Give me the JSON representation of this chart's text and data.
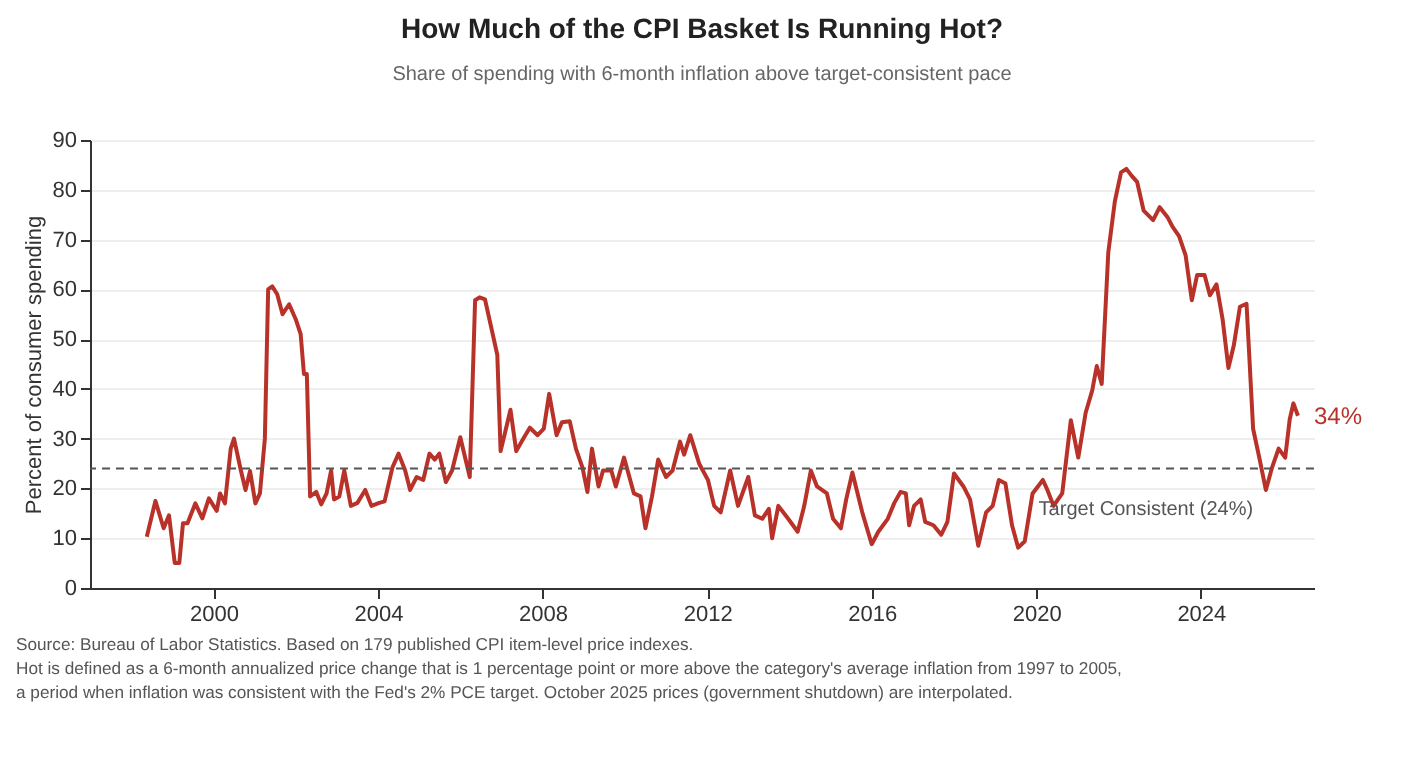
{
  "chart_data": {
    "type": "line",
    "title": "How Much of the CPI Basket Is Running Hot?",
    "subtitle": "Share of spending with 6-month inflation above target-consistent pace",
    "ylabel": "Percent of consumer spending",
    "xlim": [
      1997,
      2026.75
    ],
    "xticks": [
      2000,
      2004,
      2008,
      2012,
      2016,
      2020,
      2024
    ],
    "ylim": [
      0,
      90
    ],
    "yticks": [
      0,
      10,
      20,
      30,
      40,
      50,
      60,
      70,
      80,
      90
    ],
    "grid": "y",
    "series": [
      {
        "color": "#b8322a",
        "x": [
          1998.38,
          1998.59,
          1998.79,
          1998.92,
          1999.06,
          1999.17,
          1999.26,
          1999.37,
          1999.56,
          1999.73,
          1999.89,
          2000.08,
          2000.16,
          2000.28,
          2000.42,
          2000.5,
          2000.67,
          2000.78,
          2000.89,
          2001.02,
          2001.13,
          2001.25,
          2001.33,
          2001.43,
          2001.55,
          2001.68,
          2001.84,
          2002.0,
          2002.12,
          2002.2,
          2002.27,
          2002.35,
          2002.5,
          2002.62,
          2002.75,
          2002.86,
          2002.93,
          2003.06,
          2003.18,
          2003.34,
          2003.5,
          2003.69,
          2003.84,
          2004.03,
          2004.16,
          2004.35,
          2004.5,
          2004.66,
          2004.78,
          2004.94,
          2005.1,
          2005.25,
          2005.38,
          2005.49,
          2005.65,
          2005.8,
          2006.0,
          2006.23,
          2006.36,
          2006.47,
          2006.6,
          2006.78,
          2006.9,
          2006.98,
          2007.22,
          2007.36,
          2007.53,
          2007.69,
          2007.88,
          2008.03,
          2008.16,
          2008.34,
          2008.47,
          2008.66,
          2008.81,
          2008.97,
          2009.09,
          2009.2,
          2009.36,
          2009.47,
          2009.67,
          2009.78,
          2009.98,
          2010.22,
          2010.38,
          2010.5,
          2010.66,
          2010.81,
          2011.0,
          2011.16,
          2011.34,
          2011.44,
          2011.59,
          2011.81,
          2012.02,
          2012.17,
          2012.33,
          2012.56,
          2012.75,
          2013.0,
          2013.16,
          2013.34,
          2013.5,
          2013.58,
          2013.73,
          2013.97,
          2014.2,
          2014.36,
          2014.52,
          2014.67,
          2014.91,
          2015.06,
          2015.25,
          2015.38,
          2015.53,
          2015.77,
          2016.0,
          2016.16,
          2016.39,
          2016.55,
          2016.7,
          2016.83,
          2016.91,
          2017.03,
          2017.19,
          2017.3,
          2017.5,
          2017.69,
          2017.84,
          2018.0,
          2018.23,
          2018.39,
          2018.59,
          2018.78,
          2018.94,
          2019.09,
          2019.25,
          2019.41,
          2019.56,
          2019.72,
          2019.91,
          2020.16,
          2020.27,
          2020.42,
          2020.63,
          2020.84,
          2021.02,
          2021.2,
          2021.36,
          2021.47,
          2021.59,
          2021.75,
          2021.91,
          2022.06,
          2022.19,
          2022.31,
          2022.45,
          2022.61,
          2022.84,
          2023.0,
          2023.19,
          2023.31,
          2023.47,
          2023.63,
          2023.78,
          2023.91,
          2024.09,
          2024.22,
          2024.38,
          2024.53,
          2024.67,
          2024.8,
          2024.95,
          2025.11,
          2025.27,
          2025.42,
          2025.58,
          2025.73,
          2025.89,
          2026.05,
          2026.16,
          2026.25,
          2026.36
        ],
        "values": [
          10.3,
          17.5,
          12,
          14.6,
          5,
          5,
          13,
          13,
          17,
          14,
          18,
          15.5,
          19,
          17,
          28,
          30,
          23.5,
          19.7,
          23.5,
          17,
          19,
          30,
          60,
          60.6,
          59,
          55,
          57,
          54,
          51,
          43,
          43,
          18.4,
          19.3,
          16.8,
          19,
          23.6,
          17.8,
          18.4,
          23.6,
          16.5,
          17.1,
          19.7,
          16.5,
          17.1,
          17.4,
          24.2,
          27,
          23.6,
          19.7,
          22.3,
          21.7,
          27,
          25.8,
          27,
          21.3,
          23.6,
          30.3,
          22.3,
          57.8,
          58.4,
          58,
          51.3,
          46.8,
          27.5,
          35.8,
          27.5,
          30,
          32.2,
          30.7,
          32,
          39,
          30.7,
          33.3,
          33.5,
          28,
          24.2,
          19.3,
          28,
          20.4,
          23.6,
          23.6,
          20.4,
          26.2,
          19,
          18.4,
          12,
          18.4,
          25.8,
          22.3,
          23.6,
          29.4,
          26.8,
          30.7,
          24.9,
          21.7,
          16.5,
          15.2,
          23.6,
          16.5,
          22.3,
          14.6,
          13.9,
          15.9,
          10,
          16.5,
          13.9,
          11.3,
          16.5,
          23.6,
          20.4,
          19,
          13.9,
          12,
          17.8,
          23.2,
          15.2,
          8.8,
          11.3,
          13.9,
          17.1,
          19.3,
          19,
          12.6,
          16.5,
          17.8,
          13.3,
          12.6,
          10.7,
          13.3,
          23,
          20.4,
          17.8,
          8.5,
          15.2,
          16.5,
          21.7,
          21,
          12.6,
          8.1,
          9.4,
          19,
          21.7,
          19.7,
          16.5,
          19,
          33.7,
          26.2,
          35.2,
          39.7,
          44.6,
          41,
          67.4,
          77.7,
          83.5,
          84.2,
          82.9,
          81.6,
          75.8,
          73.9,
          76.5,
          74.5,
          72.6,
          70.7,
          66.8,
          57.8,
          62.9,
          62.9,
          58.8,
          61,
          53.9,
          44.2,
          48.7,
          56.5,
          57.1,
          32,
          26.2,
          19.7,
          24.2,
          28,
          26.2,
          33.9,
          37.1,
          34.6
        ]
      }
    ],
    "ref_lines": [
      {
        "axis": "y",
        "value": 24,
        "label": "Target Consistent (24%)",
        "color": "#555555",
        "line_style": "dashed"
      }
    ],
    "annotations": [
      {
        "text": "34%",
        "x": 2026.36,
        "y": 34.6
      },
      "Source: Bureau of Labor Statistics. Based on 179 published CPI item-level price indexes.",
      "Hot is defined as a 6-month annualized price change that is 1 percentage point or more above the category's average inflation from 1997 to 2005,",
      "a period when inflation was consistent with the Fed's 2% PCE target. October 2025 prices (government shutdown) are interpolated."
    ]
  }
}
